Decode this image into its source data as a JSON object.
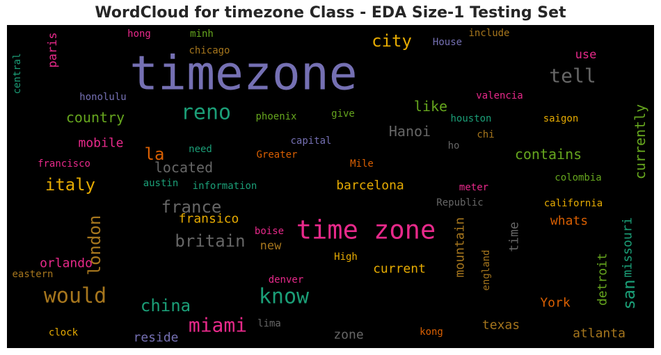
{
  "chart_data": {
    "type": "wordcloud",
    "title": "WordCloud for timezone Class - EDA Size-1 Testing Set",
    "background": "#000000",
    "words": [
      {
        "text": "timezone",
        "color": "#7570b3"
      },
      {
        "text": "time zone",
        "color": "#e7298a"
      },
      {
        "text": "city",
        "color": "#e6ab02"
      },
      {
        "text": "tell",
        "color": "#666666"
      },
      {
        "text": "reno",
        "color": "#1b9e77"
      },
      {
        "text": "know",
        "color": "#1b9e77"
      },
      {
        "text": "would",
        "color": "#a6761d"
      },
      {
        "text": "miami",
        "color": "#e7298a"
      },
      {
        "text": "china",
        "color": "#1b9e77"
      },
      {
        "text": "italy",
        "color": "#e6ab02"
      },
      {
        "text": "london",
        "color": "#a6761d"
      },
      {
        "text": "france",
        "color": "#666666"
      },
      {
        "text": "britain",
        "color": "#666666"
      },
      {
        "text": "la",
        "color": "#d95f02"
      },
      {
        "text": "san",
        "color": "#1b9e77"
      },
      {
        "text": "located",
        "color": "#666666"
      },
      {
        "text": "country",
        "color": "#66a61e"
      },
      {
        "text": "mobile",
        "color": "#e7298a"
      },
      {
        "text": "like",
        "color": "#66a61e"
      },
      {
        "text": "Hanoi",
        "color": "#666666"
      },
      {
        "text": "contains",
        "color": "#66a61e"
      },
      {
        "text": "currently",
        "color": "#66a61e"
      },
      {
        "text": "barcelona",
        "color": "#e6ab02"
      },
      {
        "text": "fransico",
        "color": "#e6ab02"
      },
      {
        "text": "whats",
        "color": "#d95f02"
      },
      {
        "text": "missouri",
        "color": "#1b9e77"
      },
      {
        "text": "detroit",
        "color": "#66a61e"
      },
      {
        "text": "mountain",
        "color": "#a6761d"
      },
      {
        "text": "time",
        "color": "#666666"
      },
      {
        "text": "current",
        "color": "#e6ab02"
      },
      {
        "text": "orlando",
        "color": "#e7298a"
      },
      {
        "text": "new",
        "color": "#a6761d"
      },
      {
        "text": "York",
        "color": "#d95f02"
      },
      {
        "text": "texas",
        "color": "#a6761d"
      },
      {
        "text": "atlanta",
        "color": "#a6761d"
      },
      {
        "text": "zone",
        "color": "#666666"
      },
      {
        "text": "reside",
        "color": "#7570b3"
      },
      {
        "text": "paris",
        "color": "#e7298a"
      },
      {
        "text": "use",
        "color": "#e7298a"
      },
      {
        "text": "hong",
        "color": "#e7298a"
      },
      {
        "text": "minh",
        "color": "#66a61e"
      },
      {
        "text": "chicago",
        "color": "#a6761d"
      },
      {
        "text": "include",
        "color": "#a6761d"
      },
      {
        "text": "House",
        "color": "#7570b3"
      },
      {
        "text": "central",
        "color": "#1b9e77"
      },
      {
        "text": "honolulu",
        "color": "#7570b3"
      },
      {
        "text": "valencia",
        "color": "#e7298a"
      },
      {
        "text": "phoenix",
        "color": "#66a61e"
      },
      {
        "text": "give",
        "color": "#66a61e"
      },
      {
        "text": "houston",
        "color": "#1b9e77"
      },
      {
        "text": "saigon",
        "color": "#e6ab02"
      },
      {
        "text": "chi",
        "color": "#a6761d"
      },
      {
        "text": "capital",
        "color": "#7570b3"
      },
      {
        "text": "ho",
        "color": "#666666"
      },
      {
        "text": "need",
        "color": "#1b9e77"
      },
      {
        "text": "Greater",
        "color": "#d95f02"
      },
      {
        "text": "francisco",
        "color": "#e7298a"
      },
      {
        "text": "Mile",
        "color": "#d95f02"
      },
      {
        "text": "austin",
        "color": "#1b9e77"
      },
      {
        "text": "information",
        "color": "#1b9e77"
      },
      {
        "text": "meter",
        "color": "#e7298a"
      },
      {
        "text": "colombia",
        "color": "#66a61e"
      },
      {
        "text": "Republic",
        "color": "#666666"
      },
      {
        "text": "california",
        "color": "#e6ab02"
      },
      {
        "text": "boise",
        "color": "#e7298a"
      },
      {
        "text": "High",
        "color": "#e6ab02"
      },
      {
        "text": "england",
        "color": "#a6761d"
      },
      {
        "text": "eastern",
        "color": "#a6761d"
      },
      {
        "text": "denver",
        "color": "#e7298a"
      },
      {
        "text": "lima",
        "color": "#666666"
      },
      {
        "text": "clock",
        "color": "#e6ab02"
      },
      {
        "text": "kong",
        "color": "#d95f02"
      }
    ]
  }
}
